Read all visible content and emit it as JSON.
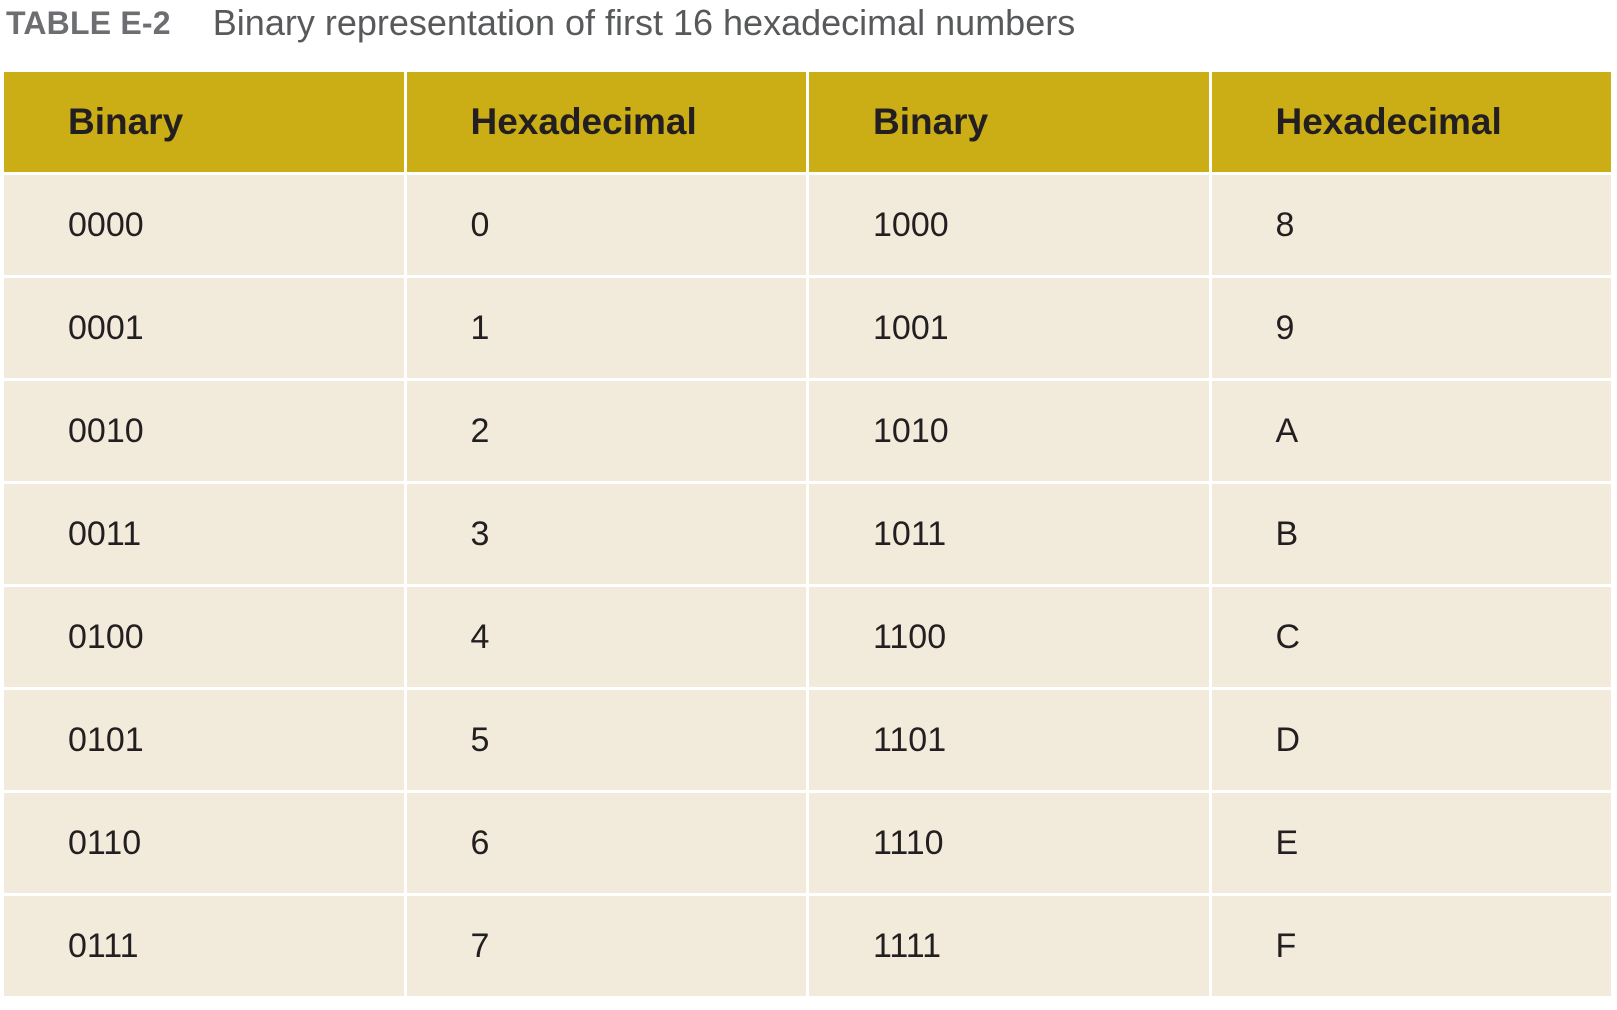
{
  "caption": {
    "label": "TABLE E-2",
    "title": "Binary representation of first 16 hexadecimal numbers"
  },
  "table": {
    "headers": [
      "Binary",
      "Hexadecimal",
      "Binary",
      "Hexadecimal"
    ],
    "rows": [
      [
        "0000",
        "0",
        "1000",
        "8"
      ],
      [
        "0001",
        "1",
        "1001",
        "9"
      ],
      [
        "0010",
        "2",
        "1010",
        "A"
      ],
      [
        "0011",
        "3",
        "1011",
        "B"
      ],
      [
        "0100",
        "4",
        "1100",
        "C"
      ],
      [
        "0101",
        "5",
        "1101",
        "D"
      ],
      [
        "0110",
        "6",
        "1110",
        "E"
      ],
      [
        "0111",
        "7",
        "1111",
        "F"
      ]
    ]
  },
  "colors": {
    "header_background": "#cbad16",
    "row_background": "#f2eadb",
    "caption_label": "#6d6e71"
  }
}
